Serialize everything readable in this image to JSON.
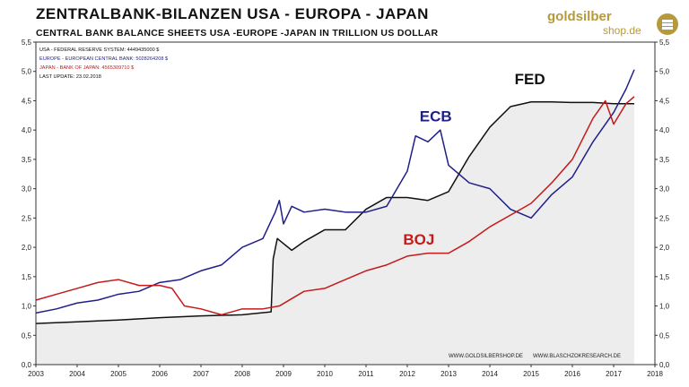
{
  "header": {
    "title": "ZENTRALBANK-BILANZEN  USA - EUROPA - JAPAN",
    "subtitle": "CENTRAL BANK BALANCE SHEETS USA -EUROPE -JAPAN IN TRILLION US DOLLAR"
  },
  "logo": {
    "brand": "goldsilber",
    "domain": "shop.de"
  },
  "info": {
    "usa": "USA - FEDERAL RESERVE SYSTEM: 4449435000  $",
    "europe": "EUROPE - EUROPEAN CENTRAL BANK: 5028264208  $",
    "japan": "JAPAN - BANK OF JAPAN: 4565309710  $",
    "update": "LAST UPDATE: 23.02.2018"
  },
  "footer": {
    "left": "WWW.GOLDSILBERSHOP.DE",
    "right": "WWW.BLASCHZOKRESEARCH.DE"
  },
  "colors": {
    "fed": "#111111",
    "ecb": "#1f1f8a",
    "boj": "#c41a1a",
    "fill": "#ededed"
  },
  "chart_data": {
    "type": "line",
    "title": "ZENTRALBANK-BILANZEN  USA - EUROPA - JAPAN",
    "xlim": [
      2003,
      2018
    ],
    "ylim": [
      0,
      5.5
    ],
    "xticks": [
      "2003",
      "2004",
      "2005",
      "2006",
      "2007",
      "2008",
      "2009",
      "2010",
      "2011",
      "2012",
      "2013",
      "2014",
      "2015",
      "2016",
      "2017",
      "2018"
    ],
    "yticks": [
      "0,0",
      "0,5",
      "1,0",
      "1,5",
      "2,0",
      "2,5",
      "3,0",
      "3,5",
      "4,0",
      "4,5",
      "5,0",
      "5,5"
    ],
    "grid": false,
    "series": [
      {
        "name": "FED",
        "label": "FED",
        "color": "#111111",
        "fill": true,
        "x": [
          2003,
          2004,
          2005,
          2006,
          2007,
          2008,
          2008.7,
          2008.75,
          2008.85,
          2009.2,
          2009.5,
          2010,
          2010.5,
          2011,
          2011.5,
          2012,
          2012.5,
          2013,
          2013.5,
          2014,
          2014.5,
          2015,
          2015.5,
          2016,
          2016.5,
          2017,
          2017.5
        ],
        "y": [
          0.7,
          0.73,
          0.76,
          0.8,
          0.83,
          0.85,
          0.9,
          1.8,
          2.15,
          1.95,
          2.1,
          2.3,
          2.3,
          2.65,
          2.85,
          2.85,
          2.8,
          2.95,
          3.55,
          4.05,
          4.4,
          4.48,
          4.48,
          4.47,
          4.47,
          4.45,
          4.45
        ]
      },
      {
        "name": "ECB",
        "label": "ECB",
        "color": "#1f1f8a",
        "x": [
          2003,
          2003.5,
          2004,
          2004.5,
          2005,
          2005.5,
          2006,
          2006.5,
          2007,
          2007.5,
          2008,
          2008.5,
          2008.8,
          2008.9,
          2009,
          2009.2,
          2009.5,
          2010,
          2010.5,
          2011,
          2011.5,
          2012,
          2012.2,
          2012.5,
          2012.8,
          2013,
          2013.5,
          2014,
          2014.5,
          2015,
          2015.5,
          2016,
          2016.5,
          2017,
          2017.3,
          2017.5
        ],
        "y": [
          0.88,
          0.95,
          1.05,
          1.1,
          1.2,
          1.25,
          1.4,
          1.45,
          1.6,
          1.7,
          2.0,
          2.15,
          2.6,
          2.8,
          2.4,
          2.7,
          2.6,
          2.65,
          2.6,
          2.6,
          2.7,
          3.3,
          3.9,
          3.8,
          4.0,
          3.4,
          3.1,
          3.0,
          2.65,
          2.5,
          2.9,
          3.2,
          3.8,
          4.3,
          4.7,
          5.03
        ]
      },
      {
        "name": "BOJ",
        "label": "BOJ",
        "color": "#c41a1a",
        "x": [
          2003,
          2003.5,
          2004,
          2004.5,
          2005,
          2005.5,
          2006,
          2006.3,
          2006.6,
          2007,
          2007.5,
          2008,
          2008.5,
          2008.9,
          2009.5,
          2010,
          2010.5,
          2011,
          2011.5,
          2012,
          2012.5,
          2013,
          2013.5,
          2014,
          2014.5,
          2015,
          2015.5,
          2016,
          2016.5,
          2016.8,
          2017,
          2017.3,
          2017.5
        ],
        "y": [
          1.1,
          1.2,
          1.3,
          1.4,
          1.45,
          1.35,
          1.35,
          1.3,
          1.0,
          0.95,
          0.85,
          0.95,
          0.95,
          1.0,
          1.25,
          1.3,
          1.45,
          1.6,
          1.7,
          1.85,
          1.9,
          1.9,
          2.1,
          2.35,
          2.55,
          2.75,
          3.1,
          3.5,
          4.2,
          4.5,
          4.1,
          4.45,
          4.57
        ]
      }
    ]
  }
}
